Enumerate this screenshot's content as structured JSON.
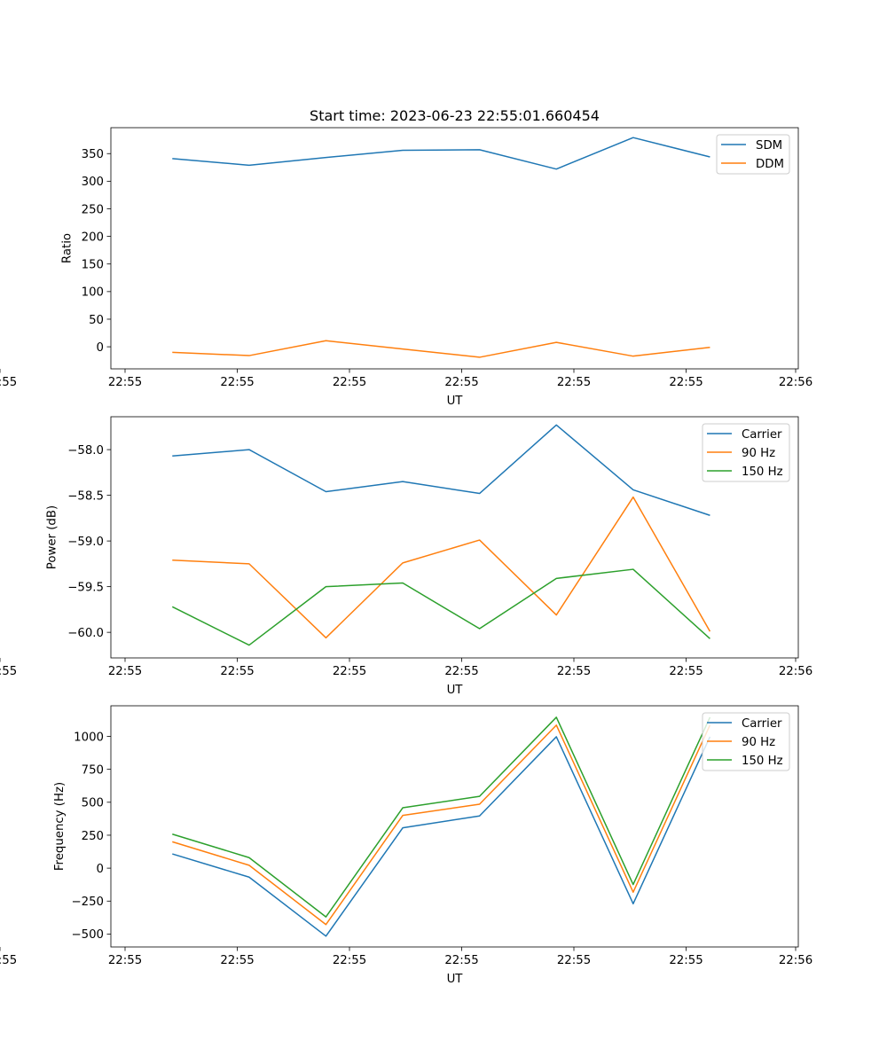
{
  "figure": {
    "title": "Start time: 2023-06-23 22:55:01.660454"
  },
  "chart_data": [
    {
      "type": "line",
      "xlabel": "UT",
      "ylabel": "Ratio",
      "x_tick_labels": [
        "22:55",
        "22:55",
        "22:55",
        "22:55",
        "22:55",
        "22:55",
        "22:55"
      ],
      "x_end_tick_label": "22:56",
      "x": [
        1,
        2,
        3,
        4,
        5,
        6,
        7,
        8
      ],
      "xlim": [
        0.2,
        9.15
      ],
      "ylim": [
        -40,
        397
      ],
      "yticks": [
        0,
        50,
        100,
        150,
        200,
        250,
        300,
        350
      ],
      "legend_position": "top-right",
      "grid": false,
      "series": [
        {
          "name": "SDM",
          "color": "#1f77b4",
          "values": [
            341,
            329,
            343,
            356,
            357,
            322,
            379,
            344
          ]
        },
        {
          "name": "DDM",
          "color": "#ff7f0e",
          "values": [
            -10,
            -16,
            11,
            -4,
            -19,
            8,
            -17,
            -1
          ]
        }
      ]
    },
    {
      "type": "line",
      "xlabel": "UT",
      "ylabel": "Power (dB)",
      "x_tick_labels": [
        "22:55",
        "22:55",
        "22:55",
        "22:55",
        "22:55",
        "22:55",
        "22:55"
      ],
      "x_end_tick_label": "22:56",
      "x": [
        1,
        2,
        3,
        4,
        5,
        6,
        7,
        8
      ],
      "xlim": [
        0.2,
        9.15
      ],
      "ylim": [
        -60.28,
        -57.64
      ],
      "yticks": [
        -60.0,
        -59.5,
        -59.0,
        -58.5,
        -58.0
      ],
      "ytick_labels": [
        "−60.0",
        "−59.5",
        "−59.0",
        "−58.5",
        "−58.0"
      ],
      "legend_position": "top-right",
      "grid": false,
      "series": [
        {
          "name": "Carrier",
          "color": "#1f77b4",
          "values": [
            -58.07,
            -58.0,
            -58.46,
            -58.35,
            -58.48,
            -57.73,
            -58.44,
            -58.72
          ]
        },
        {
          "name": "90 Hz",
          "color": "#ff7f0e",
          "values": [
            -59.21,
            -59.25,
            -60.06,
            -59.24,
            -58.99,
            -59.81,
            -58.52,
            -59.99
          ]
        },
        {
          "name": "150 Hz",
          "color": "#2ca02c",
          "values": [
            -59.72,
            -60.14,
            -59.5,
            -59.46,
            -59.96,
            -59.41,
            -59.31,
            -60.07
          ]
        }
      ]
    },
    {
      "type": "line",
      "xlabel": "UT",
      "ylabel": "Frequency (Hz)",
      "x_tick_labels": [
        "22:55",
        "22:55",
        "22:55",
        "22:55",
        "22:55",
        "22:55",
        "22:55"
      ],
      "x_end_tick_label": "22:56",
      "x": [
        1,
        2,
        3,
        4,
        5,
        6,
        7,
        8
      ],
      "xlim": [
        0.2,
        9.15
      ],
      "ylim": [
        -598,
        1232
      ],
      "yticks": [
        -500,
        -250,
        0,
        250,
        500,
        750,
        1000
      ],
      "ytick_labels": [
        "−500",
        "−250",
        "0",
        "250",
        "500",
        "750",
        "1000"
      ],
      "legend_position": "top-right",
      "grid": false,
      "series": [
        {
          "name": "Carrier",
          "color": "#1f77b4",
          "values": [
            108,
            -68,
            -516,
            306,
            396,
            997,
            -270,
            997
          ]
        },
        {
          "name": "90 Hz",
          "color": "#ff7f0e",
          "values": [
            200,
            22,
            -428,
            400,
            485,
            1085,
            -182,
            1085
          ]
        },
        {
          "name": "150 Hz",
          "color": "#2ca02c",
          "values": [
            258,
            80,
            -370,
            458,
            545,
            1145,
            -124,
            1145
          ]
        }
      ]
    }
  ]
}
